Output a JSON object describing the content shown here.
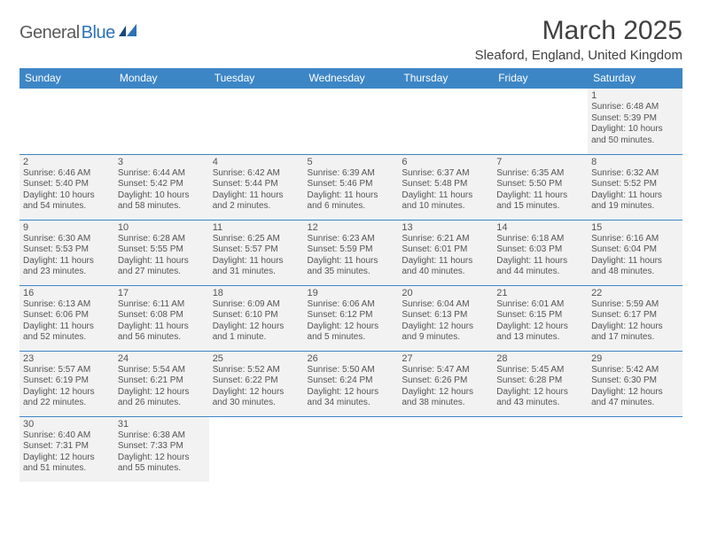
{
  "brand": {
    "main": "General",
    "sub": "Blue"
  },
  "title": "March 2025",
  "location": "Sleaford, England, United Kingdom",
  "colors": {
    "header_bg": "#3d86c6",
    "header_text": "#ffffff",
    "cell_bg": "#f2f2f2",
    "border": "#3d86c6",
    "logo_blue": "#2d72b8",
    "logo_gray": "#5a5a5a"
  },
  "weekdays": [
    "Sunday",
    "Monday",
    "Tuesday",
    "Wednesday",
    "Thursday",
    "Friday",
    "Saturday"
  ],
  "weeks": [
    [
      null,
      null,
      null,
      null,
      null,
      null,
      {
        "d": "1",
        "sr": "Sunrise: 6:48 AM",
        "ss": "Sunset: 5:39 PM",
        "dl1": "Daylight: 10 hours",
        "dl2": "and 50 minutes."
      }
    ],
    [
      {
        "d": "2",
        "sr": "Sunrise: 6:46 AM",
        "ss": "Sunset: 5:40 PM",
        "dl1": "Daylight: 10 hours",
        "dl2": "and 54 minutes."
      },
      {
        "d": "3",
        "sr": "Sunrise: 6:44 AM",
        "ss": "Sunset: 5:42 PM",
        "dl1": "Daylight: 10 hours",
        "dl2": "and 58 minutes."
      },
      {
        "d": "4",
        "sr": "Sunrise: 6:42 AM",
        "ss": "Sunset: 5:44 PM",
        "dl1": "Daylight: 11 hours",
        "dl2": "and 2 minutes."
      },
      {
        "d": "5",
        "sr": "Sunrise: 6:39 AM",
        "ss": "Sunset: 5:46 PM",
        "dl1": "Daylight: 11 hours",
        "dl2": "and 6 minutes."
      },
      {
        "d": "6",
        "sr": "Sunrise: 6:37 AM",
        "ss": "Sunset: 5:48 PM",
        "dl1": "Daylight: 11 hours",
        "dl2": "and 10 minutes."
      },
      {
        "d": "7",
        "sr": "Sunrise: 6:35 AM",
        "ss": "Sunset: 5:50 PM",
        "dl1": "Daylight: 11 hours",
        "dl2": "and 15 minutes."
      },
      {
        "d": "8",
        "sr": "Sunrise: 6:32 AM",
        "ss": "Sunset: 5:52 PM",
        "dl1": "Daylight: 11 hours",
        "dl2": "and 19 minutes."
      }
    ],
    [
      {
        "d": "9",
        "sr": "Sunrise: 6:30 AM",
        "ss": "Sunset: 5:53 PM",
        "dl1": "Daylight: 11 hours",
        "dl2": "and 23 minutes."
      },
      {
        "d": "10",
        "sr": "Sunrise: 6:28 AM",
        "ss": "Sunset: 5:55 PM",
        "dl1": "Daylight: 11 hours",
        "dl2": "and 27 minutes."
      },
      {
        "d": "11",
        "sr": "Sunrise: 6:25 AM",
        "ss": "Sunset: 5:57 PM",
        "dl1": "Daylight: 11 hours",
        "dl2": "and 31 minutes."
      },
      {
        "d": "12",
        "sr": "Sunrise: 6:23 AM",
        "ss": "Sunset: 5:59 PM",
        "dl1": "Daylight: 11 hours",
        "dl2": "and 35 minutes."
      },
      {
        "d": "13",
        "sr": "Sunrise: 6:21 AM",
        "ss": "Sunset: 6:01 PM",
        "dl1": "Daylight: 11 hours",
        "dl2": "and 40 minutes."
      },
      {
        "d": "14",
        "sr": "Sunrise: 6:18 AM",
        "ss": "Sunset: 6:03 PM",
        "dl1": "Daylight: 11 hours",
        "dl2": "and 44 minutes."
      },
      {
        "d": "15",
        "sr": "Sunrise: 6:16 AM",
        "ss": "Sunset: 6:04 PM",
        "dl1": "Daylight: 11 hours",
        "dl2": "and 48 minutes."
      }
    ],
    [
      {
        "d": "16",
        "sr": "Sunrise: 6:13 AM",
        "ss": "Sunset: 6:06 PM",
        "dl1": "Daylight: 11 hours",
        "dl2": "and 52 minutes."
      },
      {
        "d": "17",
        "sr": "Sunrise: 6:11 AM",
        "ss": "Sunset: 6:08 PM",
        "dl1": "Daylight: 11 hours",
        "dl2": "and 56 minutes."
      },
      {
        "d": "18",
        "sr": "Sunrise: 6:09 AM",
        "ss": "Sunset: 6:10 PM",
        "dl1": "Daylight: 12 hours",
        "dl2": "and 1 minute."
      },
      {
        "d": "19",
        "sr": "Sunrise: 6:06 AM",
        "ss": "Sunset: 6:12 PM",
        "dl1": "Daylight: 12 hours",
        "dl2": "and 5 minutes."
      },
      {
        "d": "20",
        "sr": "Sunrise: 6:04 AM",
        "ss": "Sunset: 6:13 PM",
        "dl1": "Daylight: 12 hours",
        "dl2": "and 9 minutes."
      },
      {
        "d": "21",
        "sr": "Sunrise: 6:01 AM",
        "ss": "Sunset: 6:15 PM",
        "dl1": "Daylight: 12 hours",
        "dl2": "and 13 minutes."
      },
      {
        "d": "22",
        "sr": "Sunrise: 5:59 AM",
        "ss": "Sunset: 6:17 PM",
        "dl1": "Daylight: 12 hours",
        "dl2": "and 17 minutes."
      }
    ],
    [
      {
        "d": "23",
        "sr": "Sunrise: 5:57 AM",
        "ss": "Sunset: 6:19 PM",
        "dl1": "Daylight: 12 hours",
        "dl2": "and 22 minutes."
      },
      {
        "d": "24",
        "sr": "Sunrise: 5:54 AM",
        "ss": "Sunset: 6:21 PM",
        "dl1": "Daylight: 12 hours",
        "dl2": "and 26 minutes."
      },
      {
        "d": "25",
        "sr": "Sunrise: 5:52 AM",
        "ss": "Sunset: 6:22 PM",
        "dl1": "Daylight: 12 hours",
        "dl2": "and 30 minutes."
      },
      {
        "d": "26",
        "sr": "Sunrise: 5:50 AM",
        "ss": "Sunset: 6:24 PM",
        "dl1": "Daylight: 12 hours",
        "dl2": "and 34 minutes."
      },
      {
        "d": "27",
        "sr": "Sunrise: 5:47 AM",
        "ss": "Sunset: 6:26 PM",
        "dl1": "Daylight: 12 hours",
        "dl2": "and 38 minutes."
      },
      {
        "d": "28",
        "sr": "Sunrise: 5:45 AM",
        "ss": "Sunset: 6:28 PM",
        "dl1": "Daylight: 12 hours",
        "dl2": "and 43 minutes."
      },
      {
        "d": "29",
        "sr": "Sunrise: 5:42 AM",
        "ss": "Sunset: 6:30 PM",
        "dl1": "Daylight: 12 hours",
        "dl2": "and 47 minutes."
      }
    ],
    [
      {
        "d": "30",
        "sr": "Sunrise: 6:40 AM",
        "ss": "Sunset: 7:31 PM",
        "dl1": "Daylight: 12 hours",
        "dl2": "and 51 minutes."
      },
      {
        "d": "31",
        "sr": "Sunrise: 6:38 AM",
        "ss": "Sunset: 7:33 PM",
        "dl1": "Daylight: 12 hours",
        "dl2": "and 55 minutes."
      },
      null,
      null,
      null,
      null,
      null
    ]
  ]
}
